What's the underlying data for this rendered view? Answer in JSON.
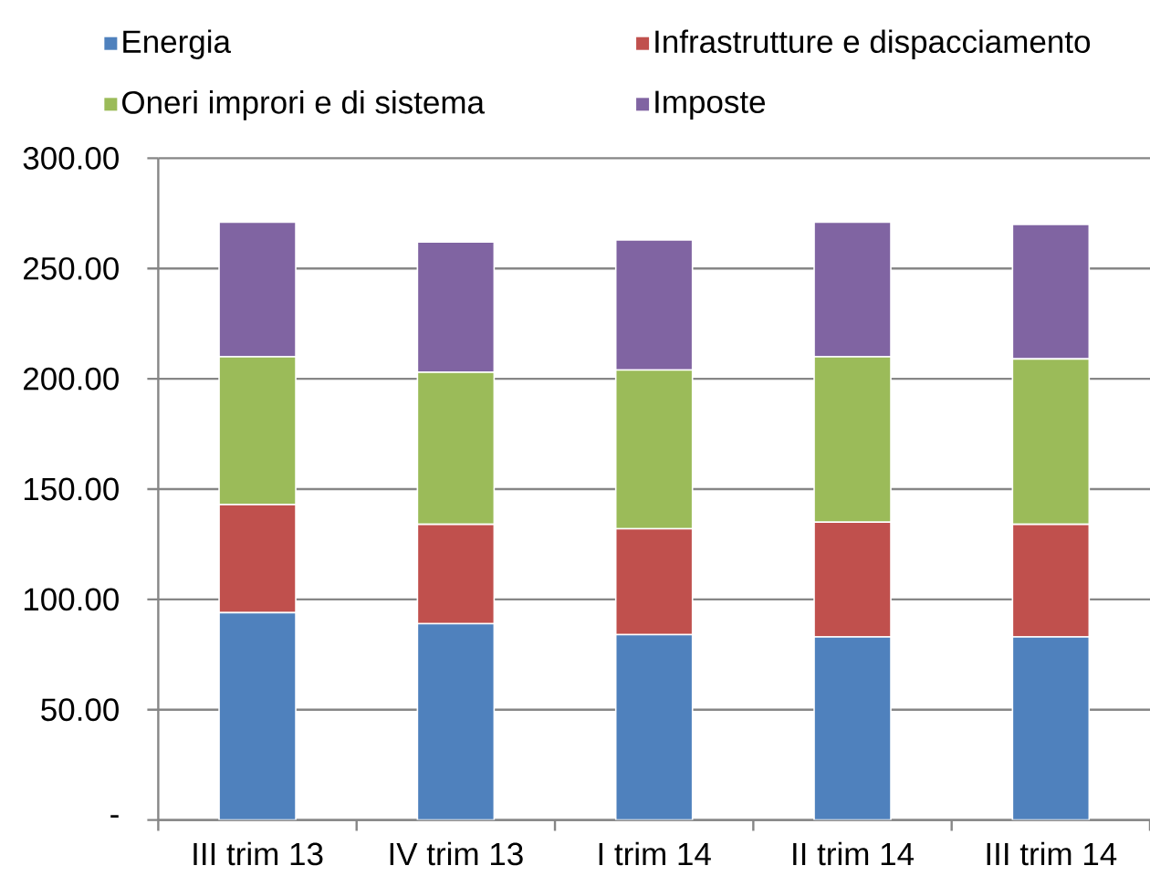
{
  "chart_data": {
    "type": "bar",
    "stacked": true,
    "categories": [
      "III trim 13",
      "IV trim 13",
      "I trim 14",
      "II trim 14",
      "III trim 14"
    ],
    "series": [
      {
        "name": "Energia",
        "color": "#4f81bd",
        "values": [
          94,
          89,
          84,
          83,
          83
        ]
      },
      {
        "name": "Infrastrutture e dispacciamento",
        "color": "#c0504d",
        "values": [
          49,
          45,
          48,
          52,
          51
        ]
      },
      {
        "name": "Oneri improri e di sistema",
        "color": "#9bbb59",
        "values": [
          67,
          69,
          72,
          75,
          75
        ]
      },
      {
        "name": "Imposte",
        "color": "#8064a2",
        "values": [
          61,
          59,
          59,
          61,
          61
        ]
      }
    ],
    "ylim": [
      0,
      300
    ],
    "yticks": [
      {
        "value": 0,
        "label": "-"
      },
      {
        "value": 50,
        "label": "50.00"
      },
      {
        "value": 100,
        "label": "100.00"
      },
      {
        "value": 150,
        "label": "150.00"
      },
      {
        "value": 200,
        "label": "200.00"
      },
      {
        "value": 250,
        "label": "250.00"
      },
      {
        "value": 300,
        "label": "300.00"
      }
    ],
    "grid": "y",
    "legend": "top"
  }
}
